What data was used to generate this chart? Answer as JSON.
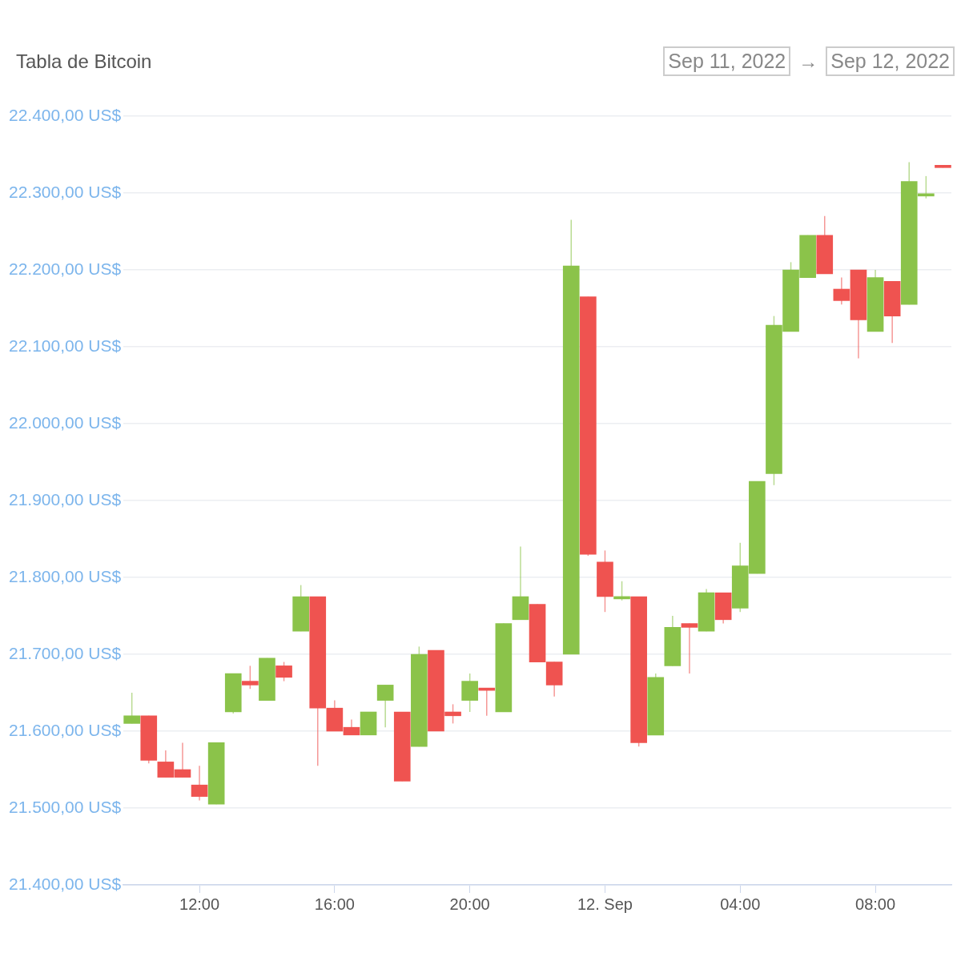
{
  "chart_data": {
    "type": "candlestick",
    "title": "Tabla de Bitcoin",
    "annotations": [
      "Sep 11, 2022",
      "→",
      "Sep 12, 2022"
    ],
    "x": [
      "2022-09-11T10:00",
      "2022-09-11T10:30",
      "2022-09-11T11:00",
      "2022-09-11T11:30",
      "2022-09-11T12:00",
      "2022-09-11T12:30",
      "2022-09-11T13:00",
      "2022-09-11T13:30",
      "2022-09-11T14:00",
      "2022-09-11T14:30",
      "2022-09-11T15:00",
      "2022-09-11T15:30",
      "2022-09-11T16:00",
      "2022-09-11T16:30",
      "2022-09-11T17:00",
      "2022-09-11T17:30",
      "2022-09-11T18:00",
      "2022-09-11T18:30",
      "2022-09-11T19:00",
      "2022-09-11T19:30",
      "2022-09-11T20:00",
      "2022-09-11T20:30",
      "2022-09-11T21:00",
      "2022-09-11T21:30",
      "2022-09-11T22:00",
      "2022-09-11T22:30",
      "2022-09-11T23:00",
      "2022-09-11T23:30",
      "2022-09-12T00:00",
      "2022-09-12T00:30",
      "2022-09-12T01:00",
      "2022-09-12T01:30",
      "2022-09-12T02:00",
      "2022-09-12T02:30",
      "2022-09-12T03:00",
      "2022-09-12T03:30",
      "2022-09-12T04:00",
      "2022-09-12T04:30",
      "2022-09-12T05:00",
      "2022-09-12T05:30",
      "2022-09-12T06:00",
      "2022-09-12T06:30",
      "2022-09-12T07:00",
      "2022-09-12T07:30",
      "2022-09-12T08:00",
      "2022-09-12T08:30",
      "2022-09-12T09:00",
      "2022-09-12T09:30",
      "2022-09-12T10:00"
    ],
    "ohlc": [
      [
        21610,
        21650,
        21610,
        21620
      ],
      [
        21620,
        21620,
        21558,
        21562
      ],
      [
        21560,
        21575,
        21540,
        21540
      ],
      [
        21550,
        21585,
        21540,
        21540
      ],
      [
        21530,
        21555,
        21510,
        21515
      ],
      [
        21505,
        21585,
        21505,
        21585
      ],
      [
        21625,
        21675,
        21623,
        21675
      ],
      [
        21665,
        21685,
        21655,
        21660
      ],
      [
        21640,
        21695,
        21640,
        21695
      ],
      [
        21685,
        21690,
        21665,
        21670
      ],
      [
        21730,
        21790,
        21730,
        21775
      ],
      [
        21775,
        21775,
        21555,
        21630
      ],
      [
        21630,
        21640,
        21600,
        21600
      ],
      [
        21605,
        21615,
        21595,
        21595
      ],
      [
        21595,
        21625,
        21595,
        21625
      ],
      [
        21640,
        21660,
        21605,
        21660
      ],
      [
        21625,
        21625,
        21535,
        21535
      ],
      [
        21580,
        21710,
        21580,
        21700
      ],
      [
        21705,
        21705,
        21600,
        21600
      ],
      [
        21625,
        21635,
        21610,
        21620
      ],
      [
        21640,
        21675,
        21625,
        21665
      ],
      [
        21655,
        21655,
        21620,
        21653
      ],
      [
        21625,
        21740,
        21625,
        21740
      ],
      [
        21745,
        21840,
        21745,
        21775
      ],
      [
        21765,
        21765,
        21690,
        21690
      ],
      [
        21690,
        21690,
        21645,
        21660
      ],
      [
        21700,
        22265,
        21700,
        22205
      ],
      [
        22165,
        22165,
        21828,
        21830
      ],
      [
        21820,
        21835,
        21755,
        21775
      ],
      [
        21772,
        21795,
        21770,
        21774
      ],
      [
        21775,
        21775,
        21580,
        21585
      ],
      [
        21595,
        21675,
        21595,
        21670
      ],
      [
        21685,
        21750,
        21685,
        21735
      ],
      [
        21740,
        21740,
        21675,
        21735
      ],
      [
        21730,
        21785,
        21730,
        21780
      ],
      [
        21780,
        21780,
        21740,
        21745
      ],
      [
        21760,
        21845,
        21755,
        21815
      ],
      [
        21805,
        21925,
        21805,
        21925
      ],
      [
        21935,
        22140,
        21920,
        22128
      ],
      [
        22120,
        22210,
        22120,
        22200
      ],
      [
        22190,
        22245,
        22190,
        22245
      ],
      [
        22245,
        22270,
        22195,
        22195
      ],
      [
        22175,
        22190,
        22155,
        22160
      ],
      [
        22200,
        22200,
        22085,
        22135
      ],
      [
        22120,
        22200,
        22120,
        22190
      ],
      [
        22185,
        22185,
        22105,
        22140
      ],
      [
        22155,
        22340,
        22155,
        22315
      ],
      [
        22296,
        22322,
        22293,
        22299
      ],
      [
        22335,
        22335,
        22333,
        22333
      ]
    ],
    "colors": [
      "#8bc34a",
      "#ef5350",
      "#ef5350",
      "#ef5350",
      "#ef5350",
      "#8bc34a",
      "#8bc34a",
      "#ef5350",
      "#8bc34a",
      "#ef5350",
      "#8bc34a",
      "#ef5350",
      "#ef5350",
      "#ef5350",
      "#8bc34a",
      "#8bc34a",
      "#ef5350",
      "#8bc34a",
      "#ef5350",
      "#ef5350",
      "#8bc34a",
      "#ef5350",
      "#8bc34a",
      "#8bc34a",
      "#ef5350",
      "#ef5350",
      "#8bc34a",
      "#ef5350",
      "#ef5350",
      "#8bc34a",
      "#ef5350",
      "#8bc34a",
      "#8bc34a",
      "#ef5350",
      "#8bc34a",
      "#ef5350",
      "#8bc34a",
      "#8bc34a",
      "#8bc34a",
      "#8bc34a",
      "#8bc34a",
      "#ef5350",
      "#ef5350",
      "#ef5350",
      "#8bc34a",
      "#ef5350",
      "#8bc34a",
      "#8bc34a",
      "#ef5350"
    ],
    "xlim": [
      "2022-09-11T09:45",
      "2022-09-12T10:15"
    ],
    "xticks": [
      {
        "value": "2022-09-11T12:00",
        "label": "12:00"
      },
      {
        "value": "2022-09-11T16:00",
        "label": "16:00"
      },
      {
        "value": "2022-09-11T20:00",
        "label": "20:00"
      },
      {
        "value": "2022-09-12T00:00",
        "label": "12. Sep"
      },
      {
        "value": "2022-09-12T04:00",
        "label": "04:00"
      },
      {
        "value": "2022-09-12T08:00",
        "label": "08:00"
      }
    ],
    "ylim": [
      21400,
      22400
    ],
    "yticks": [
      {
        "value": 21400,
        "label": "21.400,00 US$"
      },
      {
        "value": 21500,
        "label": "21.500,00 US$"
      },
      {
        "value": 21600,
        "label": "21.600,00 US$"
      },
      {
        "value": 21700,
        "label": "21.700,00 US$"
      },
      {
        "value": 21800,
        "label": "21.800,00 US$"
      },
      {
        "value": 21900,
        "label": "21.900,00 US$"
      },
      {
        "value": 22000,
        "label": "22.000,00 US$"
      },
      {
        "value": 22100,
        "label": "22.100,00 US$"
      },
      {
        "value": 22200,
        "label": "22.200,00 US$"
      },
      {
        "value": 22300,
        "label": "22.300,00 US$"
      },
      {
        "value": 22400,
        "label": "22.400,00 US$"
      }
    ],
    "grid": "y"
  }
}
